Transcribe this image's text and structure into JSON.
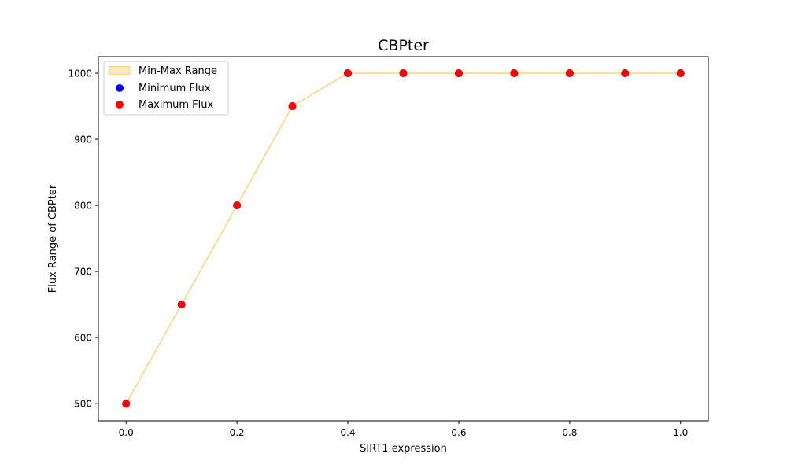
{
  "chart_data": {
    "type": "scatter",
    "title": "CBPter",
    "xlabel": "SIRT1 expression",
    "ylabel": "Flux Range of CBPter",
    "x": [
      0.0,
      0.1,
      0.2,
      0.3,
      0.4,
      0.5,
      0.6,
      0.7,
      0.8,
      0.9,
      1.0
    ],
    "xlim": [
      -0.05,
      1.05
    ],
    "ylim": [
      474,
      1025
    ],
    "x_ticks": [
      "0.0",
      "0.2",
      "0.4",
      "0.6",
      "0.8",
      "1.0"
    ],
    "y_ticks": [
      "500",
      "600",
      "700",
      "800",
      "900",
      "1000"
    ],
    "grid": false,
    "legend_position": "top-left",
    "series": [
      {
        "name": "Min-Max Range",
        "kind": "fill_between",
        "lower": [
          500,
          650,
          800,
          950,
          1000,
          1000,
          1000,
          1000,
          1000,
          1000,
          1000
        ],
        "upper": [
          500,
          650,
          800,
          950,
          1000,
          1000,
          1000,
          1000,
          1000,
          1000,
          1000
        ],
        "color": "#ffd27f"
      },
      {
        "name": "Minimum Flux",
        "kind": "scatter",
        "values": [
          500,
          650,
          800,
          950,
          1000,
          1000,
          1000,
          1000,
          1000,
          1000,
          1000
        ],
        "color": "#0000ff"
      },
      {
        "name": "Maximum Flux",
        "kind": "scatter",
        "values": [
          500,
          650,
          800,
          950,
          1000,
          1000,
          1000,
          1000,
          1000,
          1000,
          1000
        ],
        "color": "#ff0000"
      }
    ]
  }
}
